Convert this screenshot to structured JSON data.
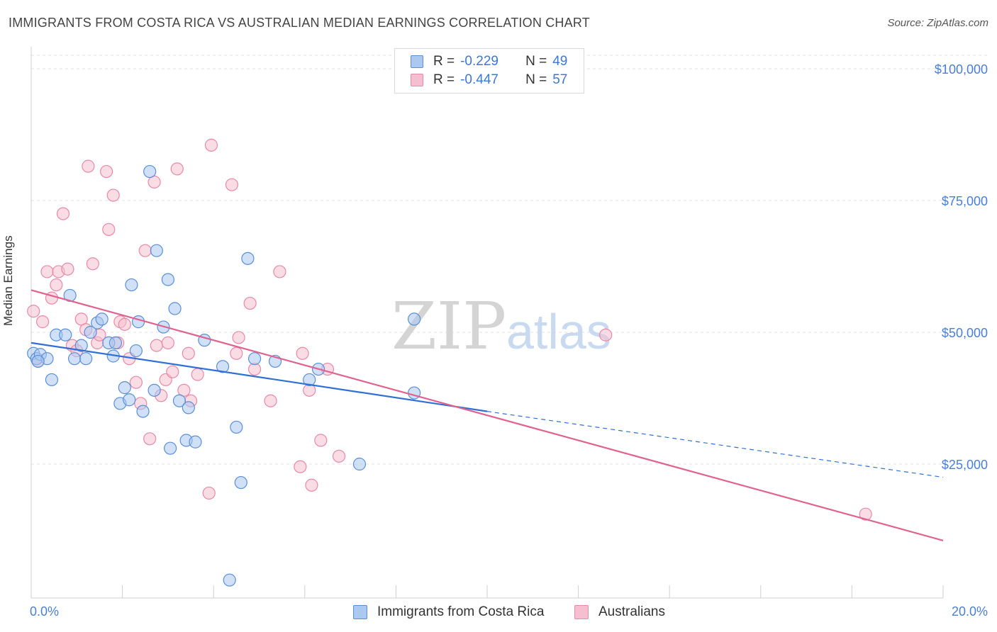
{
  "title": "IMMIGRANTS FROM COSTA RICA VS AUSTRALIAN MEDIAN EARNINGS CORRELATION CHART",
  "source": "Source: ZipAtlas.com",
  "watermark": {
    "part1": "ZIP",
    "part2": "atlas"
  },
  "legend": {
    "rows": [
      {
        "r_label": "R =",
        "r_value": "-0.229",
        "n_label": "N =",
        "n_value": "49"
      },
      {
        "r_label": "R =",
        "r_value": "-0.447",
        "n_label": "N =",
        "n_value": "57"
      }
    ]
  },
  "bottom_legend": {
    "series1": "Immigrants from Costa Rica",
    "series2": "Australians"
  },
  "colors": {
    "blue_fill": "#aac8f0",
    "blue_stroke": "#5a8fd8",
    "blue_line": "#2f6fd6",
    "pink_fill": "#f6bfd0",
    "pink_stroke": "#e889a8",
    "pink_line": "#e0628f",
    "tick_text": "#4a7fd6"
  },
  "chart_data": {
    "type": "scatter",
    "title": "IMMIGRANTS FROM COSTA RICA VS AUSTRALIAN MEDIAN EARNINGS CORRELATION CHART",
    "xlabel": "",
    "ylabel": "Median Earnings",
    "xlim": [
      0,
      20
    ],
    "ylim": [
      0,
      105000
    ],
    "x_ticks_labels": [
      "0.0%",
      "20.0%"
    ],
    "y_ticks": [
      25000,
      50000,
      75000,
      100000
    ],
    "y_tick_labels": [
      "$25,000",
      "$50,000",
      "$75,000",
      "$100,000"
    ],
    "grid": "horizontal dashed",
    "series": [
      {
        "name": "Immigrants from Costa Rica",
        "color": "blue",
        "points": [
          [
            0.05,
            46000
          ],
          [
            0.12,
            45000
          ],
          [
            0.2,
            45800
          ],
          [
            0.35,
            45000
          ],
          [
            0.45,
            41000
          ],
          [
            0.55,
            49500
          ],
          [
            0.75,
            49500
          ],
          [
            0.85,
            57000
          ],
          [
            0.95,
            45000
          ],
          [
            1.1,
            47500
          ],
          [
            1.2,
            45000
          ],
          [
            1.3,
            50000
          ],
          [
            1.45,
            51800
          ],
          [
            1.55,
            52500
          ],
          [
            1.7,
            48000
          ],
          [
            1.8,
            45500
          ],
          [
            1.85,
            48000
          ],
          [
            1.95,
            36500
          ],
          [
            2.05,
            39500
          ],
          [
            2.15,
            37200
          ],
          [
            2.2,
            59000
          ],
          [
            2.35,
            52000
          ],
          [
            2.3,
            46500
          ],
          [
            2.45,
            35000
          ],
          [
            2.6,
            80500
          ],
          [
            2.7,
            39000
          ],
          [
            2.75,
            65500
          ],
          [
            2.9,
            51000
          ],
          [
            3.0,
            60000
          ],
          [
            3.05,
            28000
          ],
          [
            3.15,
            54500
          ],
          [
            3.25,
            37000
          ],
          [
            3.4,
            29500
          ],
          [
            3.45,
            35700
          ],
          [
            3.6,
            29200
          ],
          [
            3.8,
            48500
          ],
          [
            4.2,
            43500
          ],
          [
            4.35,
            3000
          ],
          [
            4.5,
            32000
          ],
          [
            4.6,
            21500
          ],
          [
            4.75,
            64000
          ],
          [
            4.9,
            45000
          ],
          [
            5.35,
            44500
          ],
          [
            6.1,
            41000
          ],
          [
            6.3,
            43000
          ],
          [
            7.2,
            25000
          ],
          [
            8.4,
            52500
          ],
          [
            8.4,
            38500
          ],
          [
            0.15,
            44500
          ]
        ]
      },
      {
        "name": "Australians",
        "color": "pink",
        "points": [
          [
            0.05,
            54000
          ],
          [
            0.15,
            44500
          ],
          [
            0.25,
            52000
          ],
          [
            0.35,
            61500
          ],
          [
            0.45,
            56500
          ],
          [
            0.55,
            59000
          ],
          [
            0.6,
            61500
          ],
          [
            0.7,
            72500
          ],
          [
            0.8,
            62000
          ],
          [
            0.9,
            47500
          ],
          [
            1.0,
            46500
          ],
          [
            1.1,
            52500
          ],
          [
            1.2,
            50500
          ],
          [
            1.25,
            81500
          ],
          [
            1.35,
            63000
          ],
          [
            1.45,
            48000
          ],
          [
            1.5,
            49500
          ],
          [
            1.65,
            80500
          ],
          [
            1.7,
            69500
          ],
          [
            1.8,
            76000
          ],
          [
            1.9,
            48000
          ],
          [
            1.95,
            52000
          ],
          [
            2.05,
            51500
          ],
          [
            2.15,
            45000
          ],
          [
            2.3,
            40500
          ],
          [
            2.4,
            36500
          ],
          [
            2.5,
            65500
          ],
          [
            2.6,
            29800
          ],
          [
            2.7,
            78500
          ],
          [
            2.75,
            47500
          ],
          [
            2.85,
            38000
          ],
          [
            2.95,
            41000
          ],
          [
            3.0,
            48000
          ],
          [
            3.1,
            42500
          ],
          [
            3.2,
            81000
          ],
          [
            3.35,
            39000
          ],
          [
            3.45,
            46000
          ],
          [
            3.5,
            37000
          ],
          [
            3.65,
            42000
          ],
          [
            3.9,
            19500
          ],
          [
            3.95,
            85500
          ],
          [
            4.4,
            78000
          ],
          [
            4.5,
            46000
          ],
          [
            4.55,
            49000
          ],
          [
            4.8,
            55500
          ],
          [
            4.9,
            43000
          ],
          [
            5.25,
            37000
          ],
          [
            5.45,
            61500
          ],
          [
            5.9,
            24500
          ],
          [
            5.95,
            46000
          ],
          [
            6.1,
            39000
          ],
          [
            6.15,
            21000
          ],
          [
            6.35,
            29500
          ],
          [
            6.5,
            43000
          ],
          [
            6.75,
            26500
          ],
          [
            12.6,
            49500
          ],
          [
            18.3,
            15500
          ]
        ]
      }
    ],
    "trend_lines": [
      {
        "series": "Immigrants from Costa Rica",
        "x0": 0,
        "y0": 48000,
        "x1": 10,
        "y1": 35000,
        "dashed_extension_to": [
          20,
          22500
        ]
      },
      {
        "series": "Australians",
        "x0": 0,
        "y0": 58000,
        "x1": 20,
        "y1": 10500
      }
    ]
  }
}
